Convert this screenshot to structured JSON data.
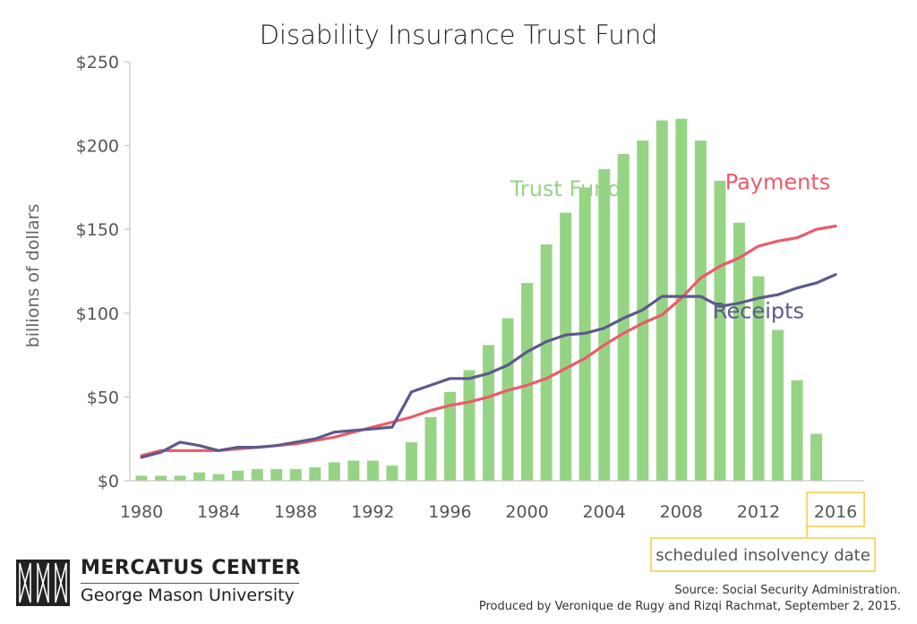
{
  "chart_data": {
    "type": "bar",
    "title": "Disability Insurance Trust Fund",
    "ylabel": "billions of dollars",
    "ylim": [
      0,
      250
    ],
    "yticks": [
      0,
      50,
      100,
      150,
      200,
      250
    ],
    "ytick_labels": [
      "$0",
      "$50",
      "$100",
      "$150",
      "$200",
      "$250"
    ],
    "xlim": [
      1980,
      2016
    ],
    "xticks": [
      1980,
      1984,
      1988,
      1992,
      1996,
      2000,
      2004,
      2008,
      2012,
      2016
    ],
    "xtick_labels": [
      "1980",
      "1984",
      "1988",
      "1992",
      "1996",
      "2000",
      "2004",
      "2008",
      "2012",
      "2016"
    ],
    "grid": false,
    "x": [
      1980,
      1981,
      1982,
      1983,
      1984,
      1985,
      1986,
      1987,
      1988,
      1989,
      1990,
      1991,
      1992,
      1993,
      1994,
      1995,
      1996,
      1997,
      1998,
      1999,
      2000,
      2001,
      2002,
      2003,
      2004,
      2005,
      2006,
      2007,
      2008,
      2009,
      2010,
      2011,
      2012,
      2013,
      2014,
      2015,
      2016
    ],
    "series": [
      {
        "name": "Trust Fund",
        "type": "bar",
        "color": "#96d485",
        "label_year": 2002,
        "label_value": 170,
        "values": [
          3,
          3,
          3,
          5,
          4,
          6,
          7,
          7,
          7,
          8,
          11,
          12,
          12,
          9,
          23,
          38,
          53,
          66,
          81,
          97,
          118,
          141,
          160,
          175,
          186,
          195,
          203,
          215,
          216,
          203,
          179,
          154,
          122,
          90,
          60,
          28,
          null
        ]
      },
      {
        "name": "Payments",
        "type": "line",
        "color": "#ec5b6a",
        "label_year": 2013,
        "label_value": 174,
        "values": [
          15,
          18,
          18,
          18,
          18,
          19,
          20,
          21,
          22,
          24,
          26,
          29,
          32,
          35,
          38,
          42,
          45,
          47,
          50,
          54,
          57,
          61,
          67,
          73,
          81,
          88,
          94,
          99,
          109,
          121,
          128,
          133,
          140,
          143,
          145,
          150,
          152
        ]
      },
      {
        "name": "Receipts",
        "type": "line",
        "color": "#5c5a8b",
        "label_year": 2012,
        "label_value": 97,
        "values": [
          14,
          17,
          23,
          21,
          18,
          20,
          20,
          21,
          23,
          25,
          29,
          30,
          31,
          32,
          53,
          57,
          61,
          61,
          64,
          69,
          77,
          83,
          87,
          88,
          91,
          97,
          102,
          110,
          110,
          110,
          104,
          106,
          109,
          111,
          115,
          118,
          123
        ]
      }
    ],
    "annotation": {
      "text": "scheduled insolvency date",
      "year": 2016,
      "color": "#f2cd3d"
    }
  },
  "branding": {
    "org_name": "MERCATUS CENTER",
    "org_sub": "George Mason University"
  },
  "source_lines": [
    "Source: Social Security Administration.",
    "Produced by Veronique de Rugy and Rizqi Rachmat, September 2, 2015."
  ]
}
